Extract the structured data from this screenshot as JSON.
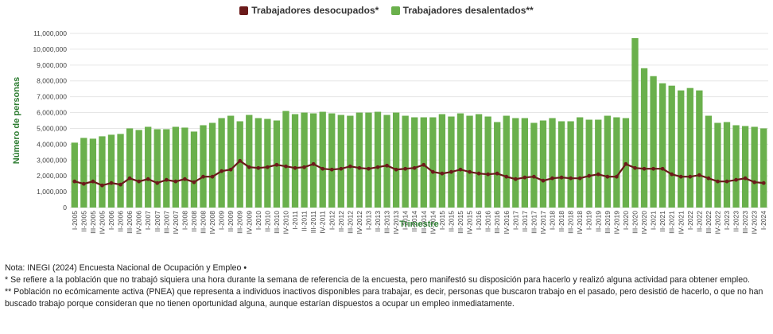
{
  "colors": {
    "bar": "#6ab04c",
    "line": "#6b1a1a",
    "axis_title": "#2e7d32",
    "grid": "#e6e6e6"
  },
  "chart_data": {
    "type": "bar",
    "title": "",
    "legend_position": "top-center",
    "grid": true,
    "xlabel": "Trimestre",
    "ylabel": "Número de personas",
    "ylim": [
      0,
      11000000
    ],
    "yticks": [
      0,
      1000000,
      2000000,
      3000000,
      4000000,
      5000000,
      6000000,
      7000000,
      8000000,
      9000000,
      10000000,
      11000000
    ],
    "ytick_labels": [
      "0",
      "1,000,000",
      "2,000,000",
      "3,000,000",
      "4,000,000",
      "5,000,000",
      "6,000,000",
      "7,000,000",
      "8,000,000",
      "9,000,000",
      "10,000,000",
      "11,000,000"
    ],
    "categories": [
      "I-2005",
      "II-2005",
      "III-2005",
      "IV-2005",
      "I-2006",
      "II-2006",
      "III-2006",
      "IV-2006",
      "I-2007",
      "II-2007",
      "III-2007",
      "IV-2007",
      "I-2008",
      "II-2008",
      "III-2008",
      "IV-2008",
      "I-2009",
      "II-2009",
      "III-2009",
      "IV-2009",
      "I-2010",
      "II-2010",
      "III-2010",
      "IV-2010",
      "I-2011",
      "II-2011",
      "III-2011",
      "IV-2011",
      "I-2012",
      "II-2012",
      "III-2012",
      "IV-2012",
      "I-2013",
      "II-2013",
      "III-2013",
      "IV-2013",
      "I-2014",
      "II-2014",
      "III-2014",
      "IV-2014",
      "I-2015",
      "II-2015",
      "III-2015",
      "IV-2015",
      "I-2016",
      "II-2016",
      "III-2016",
      "IV-2016",
      "I-2017",
      "II-2017",
      "III-2017",
      "IV-2017",
      "I-2018",
      "II-2018",
      "III-2018",
      "IV-2018",
      "I-2019",
      "II-2019",
      "III-2019",
      "IV-2019",
      "I-2020",
      "III-2020",
      "IV-2020",
      "I-2021",
      "II-2021",
      "III-2021",
      "IV-2021",
      "I-2022",
      "II-2022",
      "III-2022",
      "IV-2022",
      "I-2023",
      "II-2023",
      "III-2023",
      "IV-2023",
      "I-2024"
    ],
    "series": [
      {
        "name": "Trabajadores desalentados**",
        "kind": "bar",
        "values": [
          4100000,
          4400000,
          4350000,
          4500000,
          4600000,
          4650000,
          5000000,
          4900000,
          5100000,
          4950000,
          4950000,
          5100000,
          5050000,
          4800000,
          5200000,
          5350000,
          5650000,
          5800000,
          5450000,
          5850000,
          5650000,
          5600000,
          5500000,
          6100000,
          5900000,
          6000000,
          5950000,
          6050000,
          5950000,
          5850000,
          5800000,
          6000000,
          6000000,
          6050000,
          5850000,
          6000000,
          5800000,
          5700000,
          5700000,
          5700000,
          5900000,
          5750000,
          5950000,
          5800000,
          5900000,
          5750000,
          5400000,
          5800000,
          5650000,
          5650000,
          5350000,
          5500000,
          5650000,
          5450000,
          5450000,
          5700000,
          5550000,
          5550000,
          5800000,
          5700000,
          5650000,
          10700000,
          8800000,
          8300000,
          7850000,
          7700000,
          7400000,
          7550000,
          7400000,
          5800000,
          5350000,
          5400000,
          5200000,
          5150000,
          5100000,
          5000000
        ]
      },
      {
        "name": "Trabajadores desocupados*",
        "kind": "line",
        "values": [
          1650000,
          1500000,
          1650000,
          1400000,
          1550000,
          1450000,
          1850000,
          1650000,
          1800000,
          1550000,
          1750000,
          1650000,
          1800000,
          1600000,
          1950000,
          1950000,
          2300000,
          2400000,
          2950000,
          2550000,
          2500000,
          2550000,
          2700000,
          2600000,
          2500000,
          2550000,
          2750000,
          2450000,
          2400000,
          2450000,
          2600000,
          2500000,
          2450000,
          2550000,
          2650000,
          2400000,
          2450000,
          2500000,
          2700000,
          2250000,
          2150000,
          2250000,
          2400000,
          2250000,
          2150000,
          2100000,
          2150000,
          1950000,
          1800000,
          1900000,
          1950000,
          1700000,
          1850000,
          1900000,
          1850000,
          1850000,
          2000000,
          2100000,
          1950000,
          1950000,
          2750000,
          2500000,
          2450000,
          2450000,
          2450000,
          2100000,
          1950000,
          1950000,
          2050000,
          1850000,
          1650000,
          1650000,
          1750000,
          1850000,
          1600000,
          1550000
        ]
      }
    ]
  },
  "legend": {
    "item_line": "Trabajadores desocupados*",
    "item_bar": "Trabajadores desalentados**"
  },
  "notes": {
    "source": "Nota: INEGI (2024) Encuesta Nacional de Ocupación y Empleo •",
    "note1": "* Se refiere a la población que no trabajó siquiera una hora durante la semana de referencia de la encuesta, pero manifestó su disposición para hacerlo y realizó alguna actividad para obtener empleo.",
    "note2": "** Población no ecómicamente activa (PNEA) que representa a individuos inactivos disponibles para trabajar, es decir, personas que buscaron trabajo en el pasado, pero desistió de hacerlo, o que no han buscado trabajo porque consideran que no tienen oportunidad alguna, aunque estarían dispuestos a ocupar un empleo inmediatamente."
  }
}
